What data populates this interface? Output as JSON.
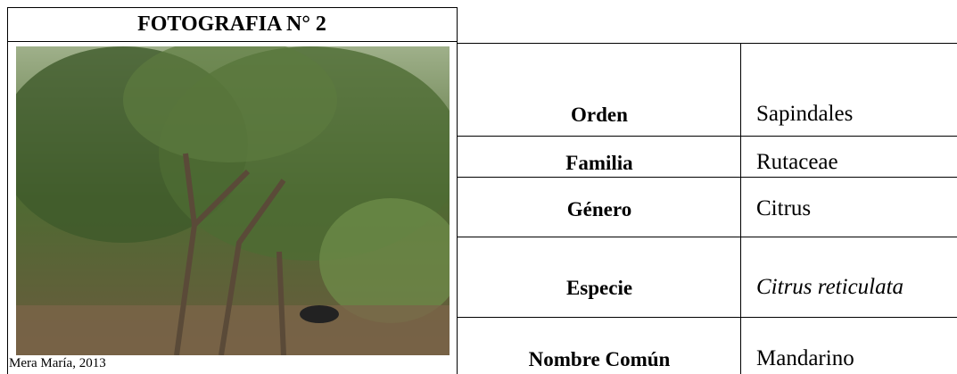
{
  "header": {
    "title": "FOTOGRAFIA N° 2"
  },
  "photo": {
    "caption": "Mera María, 2013"
  },
  "table": {
    "rows": [
      {
        "label": "Orden",
        "value": "Sapindales"
      },
      {
        "label": "Familia",
        "value": "Rutaceae"
      },
      {
        "label": "Género",
        "value": "Citrus"
      },
      {
        "label": "Especie",
        "value": "Citrus reticulata"
      },
      {
        "label": "Nombre Común",
        "value": "Mandarino"
      }
    ]
  }
}
